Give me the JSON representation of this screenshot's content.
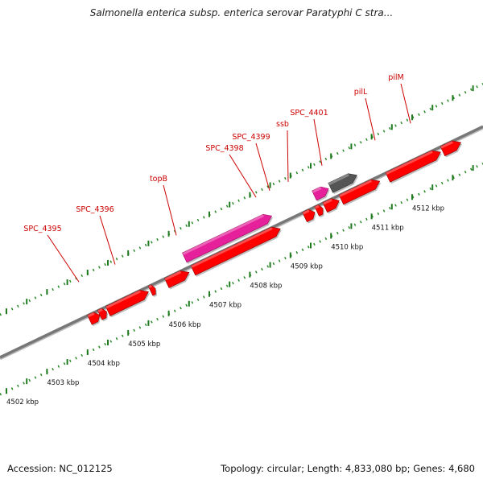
{
  "title": "Salmonella enterica subsp. enterica serovar Paratyphi C stra...",
  "footer": {
    "accession": "Accession: NC_012125",
    "summary": "Topology: circular; Length: 4,833,080 bp; Genes: 4,680"
  },
  "colors": {
    "gene_forward": "#ff0000",
    "gene_rna": "#e6209a",
    "gene_other": "#555555",
    "backbone": "#777777",
    "ticks": "#2a8a2a",
    "label": "#cc0000"
  },
  "scale_labels": [
    "4502 kbp",
    "4503 kbp",
    "4504 kbp",
    "4505 kbp",
    "4506 kbp",
    "4507 kbp",
    "4508 kbp",
    "4509 kbp",
    "4510 kbp",
    "4511 kbp",
    "4512 kbp"
  ],
  "gene_labels": [
    "SPC_4395",
    "SPC_4396",
    "topB",
    "SPC_4398",
    "SPC_4399",
    "ssb",
    "SPC_4401",
    "pilL",
    "pilM"
  ],
  "genes": [
    {
      "row": "lower",
      "start": 4504.0,
      "end": 4504.25,
      "type": "cds"
    },
    {
      "row": "lower",
      "start": 4504.25,
      "end": 4504.42,
      "type": "cds"
    },
    {
      "row": "lower",
      "start": 4504.45,
      "end": 4505.45,
      "type": "cds"
    },
    {
      "row": "lower",
      "start": 4505.5,
      "end": 4505.62,
      "type": "cds"
    },
    {
      "row": "lower",
      "start": 4505.9,
      "end": 4506.45,
      "type": "cds"
    },
    {
      "row": "lower",
      "start": 4506.55,
      "end": 4508.7,
      "type": "cds"
    },
    {
      "row": "upper",
      "start": 4506.5,
      "end": 4508.65,
      "type": "rna"
    },
    {
      "row": "lower",
      "start": 4509.3,
      "end": 4509.55,
      "type": "cds"
    },
    {
      "row": "lower",
      "start": 4509.6,
      "end": 4509.75,
      "type": "cds"
    },
    {
      "row": "upper",
      "start": 4509.7,
      "end": 4510.05,
      "type": "rna"
    },
    {
      "row": "lower",
      "start": 4509.8,
      "end": 4510.15,
      "type": "cds"
    },
    {
      "row": "upper",
      "start": 4510.1,
      "end": 4510.75,
      "type": "other"
    },
    {
      "row": "lower",
      "start": 4510.2,
      "end": 4511.15,
      "type": "cds"
    },
    {
      "row": "lower",
      "start": 4511.35,
      "end": 4512.65,
      "type": "cds"
    },
    {
      "row": "lower",
      "start": 4512.7,
      "end": 4513.15,
      "type": "cds"
    }
  ]
}
